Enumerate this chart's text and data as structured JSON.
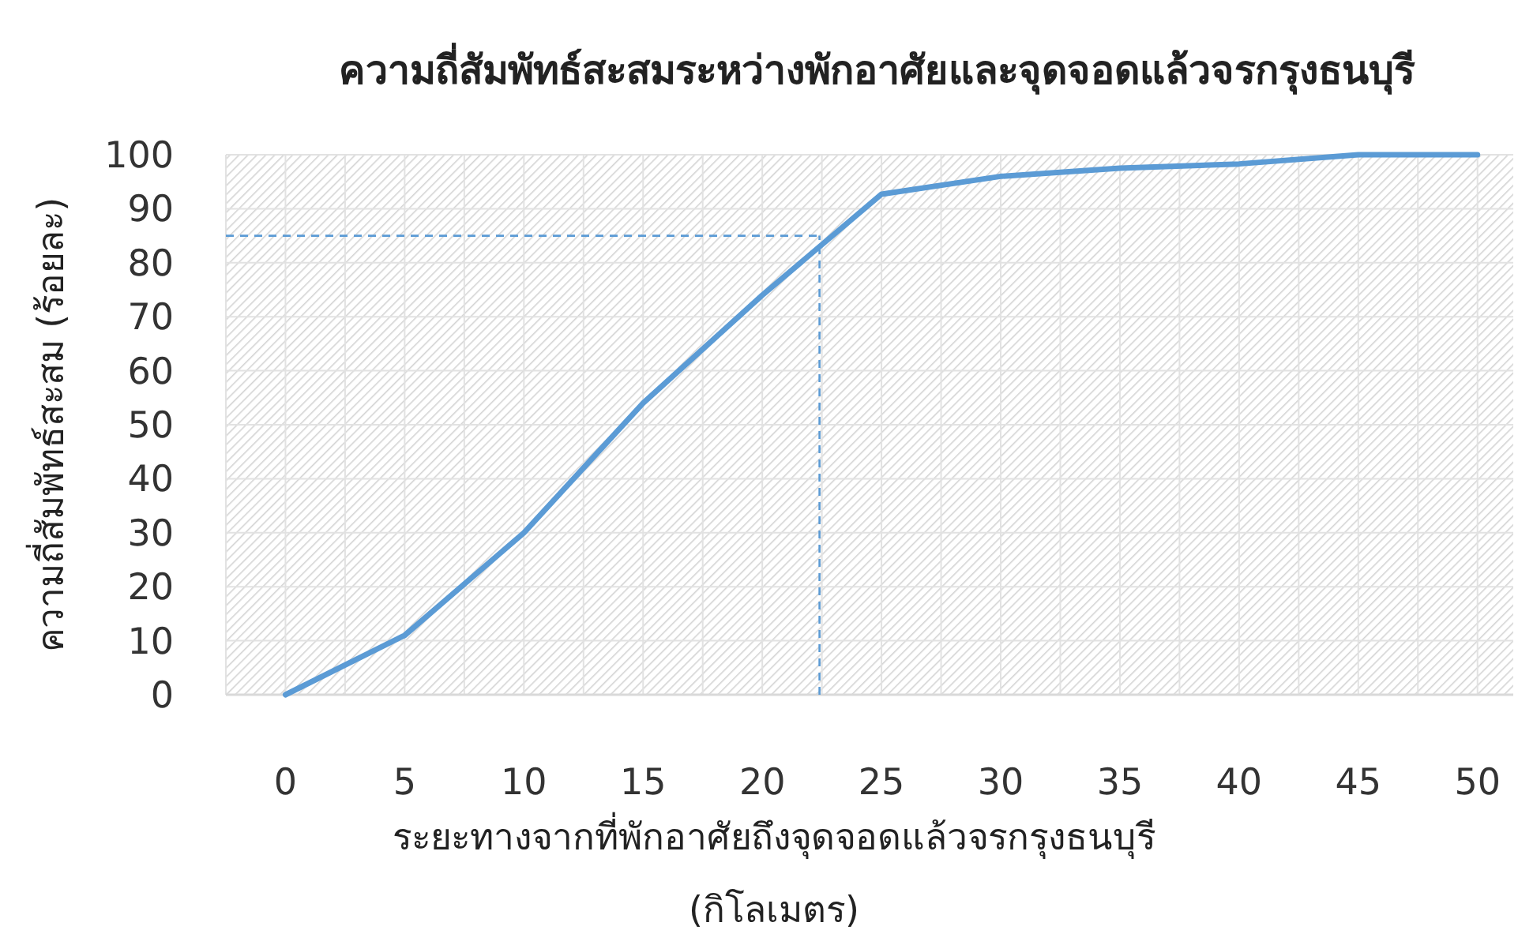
{
  "chart_data": {
    "type": "line",
    "title": "ความถี่สัมพัทธ์สะสมระหว่างพักอาศัยและจุดจอดแล้วจรกรุงธนบุรี",
    "xlabel": "ระยะทางจากที่พักอาศัยถึงจุดจอดแล้วจรกรุงธนบุรี\n(กิโลเมตร)",
    "ylabel": "ความถี่สัมพัทธ์สะสม (ร้อยละ)",
    "x": [
      0,
      5,
      10,
      15,
      20,
      25,
      30,
      35,
      40,
      45,
      50
    ],
    "series": [
      {
        "color": "#5b9bd5",
        "values": [
          0,
          11,
          30,
          54,
          74,
          92.7,
          96,
          97.5,
          98.3,
          100,
          100
        ]
      }
    ],
    "xlim": [
      -2.5,
      51.5
    ],
    "xticks": [
      {
        "value": -2.5,
        "label": null
      },
      0,
      {
        "value": 2.5,
        "label": null
      },
      5,
      {
        "value": 7.5,
        "label": null
      },
      10,
      {
        "value": 12.5,
        "label": null
      },
      15,
      {
        "value": 17.5,
        "label": null
      },
      20,
      {
        "value": 22.5,
        "label": null
      },
      25,
      {
        "value": 27.5,
        "label": null
      },
      30,
      {
        "value": 32.5,
        "label": null
      },
      35,
      {
        "value": 37.5,
        "label": null
      },
      40,
      {
        "value": 42.5,
        "label": null
      },
      45,
      {
        "value": 47.5,
        "label": null
      },
      50
    ],
    "ylim": [
      0,
      100
    ],
    "yticks": [
      0,
      10,
      20,
      30,
      40,
      50,
      60,
      70,
      80,
      90,
      100
    ],
    "grid": true,
    "marker": "none",
    "line_style": "solid",
    "ref_lines": [
      {
        "axis": "y",
        "value": 85,
        "color": "#5b9bd5",
        "line_style": "dashed"
      },
      {
        "axis": "x",
        "value": 22.4,
        "color": "#5b9bd5",
        "line_style": "dashed"
      }
    ]
  }
}
